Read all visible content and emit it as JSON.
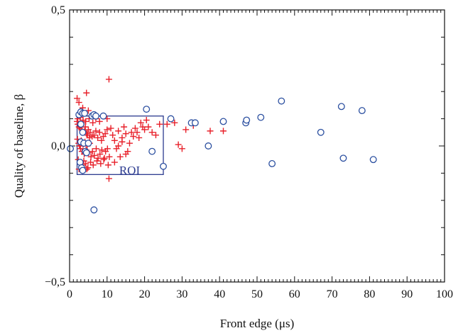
{
  "chart_data": {
    "type": "scatter",
    "title": "",
    "xlabel": "Front edge (μs)",
    "ylabel": "Quality of baseline, β",
    "xlim": [
      0,
      100
    ],
    "ylim": [
      -0.5,
      0.5
    ],
    "x_ticks": [
      0,
      10,
      20,
      30,
      40,
      50,
      60,
      70,
      80,
      90,
      100
    ],
    "x_tick_labels": [
      "0",
      "10",
      "20",
      "30",
      "40",
      "50",
      "60",
      "70",
      "80",
      "90",
      "100"
    ],
    "y_ticks": [
      -0.5,
      0.0,
      0.5
    ],
    "y_tick_labels": [
      "−0,5",
      "0,0",
      "0,5"
    ],
    "grid": false,
    "legend": "none",
    "annotations": [
      {
        "text": "ROI",
        "x": 16,
        "y": -0.11
      }
    ],
    "roi": {
      "x0": 2,
      "x1": 25,
      "y0": -0.105,
      "y1": 0.11
    },
    "series": [
      {
        "marker": "plus",
        "color": "#e8202a",
        "points": [
          [
            2.0,
            0.175
          ],
          [
            2.5,
            0.16
          ],
          [
            3.0,
            0.12
          ],
          [
            3.5,
            0.14
          ],
          [
            4.5,
            0.195
          ],
          [
            5.0,
            0.13
          ],
          [
            10.5,
            0.245
          ],
          [
            10.0,
            0.1
          ],
          [
            2.0,
            0.09
          ],
          [
            2.2,
            0.08
          ],
          [
            2.5,
            0.07
          ],
          [
            2.7,
            0.065
          ],
          [
            3.0,
            0.075
          ],
          [
            3.2,
            0.06
          ],
          [
            3.5,
            0.085
          ],
          [
            3.7,
            0.05
          ],
          [
            4.0,
            0.055
          ],
          [
            4.2,
            0.07
          ],
          [
            4.5,
            0.045
          ],
          [
            4.8,
            0.04
          ],
          [
            5.0,
            0.06
          ],
          [
            5.3,
            0.03
          ],
          [
            5.5,
            0.05
          ],
          [
            6.0,
            0.035
          ],
          [
            6.5,
            0.04
          ],
          [
            7.0,
            0.055
          ],
          [
            7.5,
            0.03
          ],
          [
            8.0,
            0.05
          ],
          [
            8.5,
            0.02
          ],
          [
            9.0,
            0.035
          ],
          [
            9.5,
            0.045
          ],
          [
            10.0,
            0.06
          ],
          [
            2.1,
            0.025
          ],
          [
            2.4,
            0.01
          ],
          [
            2.6,
            0.0
          ],
          [
            2.9,
            -0.01
          ],
          [
            3.1,
            0.02
          ],
          [
            3.3,
            -0.02
          ],
          [
            3.6,
            0.005
          ],
          [
            3.9,
            -0.03
          ],
          [
            4.1,
            0.015
          ],
          [
            4.4,
            -0.015
          ],
          [
            4.7,
            0.0
          ],
          [
            5.1,
            -0.025
          ],
          [
            5.4,
            0.01
          ],
          [
            5.7,
            -0.04
          ],
          [
            6.1,
            -0.02
          ],
          [
            6.6,
            -0.035
          ],
          [
            7.1,
            -0.01
          ],
          [
            7.6,
            -0.045
          ],
          [
            8.1,
            -0.03
          ],
          [
            8.6,
            -0.015
          ],
          [
            9.1,
            -0.05
          ],
          [
            9.6,
            -0.02
          ],
          [
            10.1,
            -0.01
          ],
          [
            10.6,
            -0.04
          ],
          [
            2.3,
            -0.05
          ],
          [
            2.8,
            -0.06
          ],
          [
            3.4,
            -0.07
          ],
          [
            3.8,
            -0.055
          ],
          [
            4.3,
            -0.065
          ],
          [
            4.9,
            -0.08
          ],
          [
            5.6,
            -0.06
          ],
          [
            6.3,
            -0.07
          ],
          [
            7.3,
            -0.055
          ],
          [
            8.3,
            -0.065
          ],
          [
            9.3,
            -0.045
          ],
          [
            10.3,
            -0.07
          ],
          [
            2.5,
            -0.085
          ],
          [
            3.5,
            -0.09
          ],
          [
            4.6,
            -0.085
          ],
          [
            10.5,
            -0.12
          ],
          [
            2.2,
            0.1
          ],
          [
            2.8,
            0.105
          ],
          [
            3.6,
            0.095
          ],
          [
            4.3,
            0.09
          ],
          [
            5.2,
            0.1
          ],
          [
            6.2,
            0.085
          ],
          [
            7.0,
            0.1
          ],
          [
            8.0,
            0.09
          ],
          [
            11.0,
            0.065
          ],
          [
            11.5,
            0.04
          ],
          [
            12.0,
            0.02
          ],
          [
            12.5,
            -0.01
          ],
          [
            13.0,
            0.055
          ],
          [
            13.5,
            -0.04
          ],
          [
            14.0,
            0.03
          ],
          [
            14.5,
            0.07
          ],
          [
            15.0,
            0.045
          ],
          [
            15.5,
            -0.02
          ],
          [
            16.0,
            0.01
          ],
          [
            16.5,
            0.05
          ],
          [
            17.0,
            0.035
          ],
          [
            17.5,
            0.065
          ],
          [
            18.0,
            0.05
          ],
          [
            18.5,
            0.03
          ],
          [
            19.0,
            0.085
          ],
          [
            19.5,
            0.07
          ],
          [
            20.0,
            0.06
          ],
          [
            20.5,
            0.095
          ],
          [
            21.0,
            0.07
          ],
          [
            22.0,
            0.05
          ],
          [
            23.0,
            0.04
          ],
          [
            24.0,
            0.08
          ],
          [
            13.0,
            0.0
          ],
          [
            15.0,
            -0.03
          ],
          [
            12.0,
            -0.06
          ],
          [
            14.0,
            0.015
          ],
          [
            26.0,
            0.08
          ],
          [
            28.0,
            0.085
          ],
          [
            29.0,
            0.005
          ],
          [
            30.0,
            -0.01
          ],
          [
            31.0,
            0.06
          ],
          [
            33.0,
            0.075
          ],
          [
            37.5,
            0.055
          ],
          [
            41.0,
            0.055
          ]
        ]
      },
      {
        "marker": "circle",
        "color": "#2b4fa0",
        "points": [
          [
            0.2,
            -0.01
          ],
          [
            2.5,
            0.115
          ],
          [
            3.0,
            0.125
          ],
          [
            3.5,
            0.12
          ],
          [
            4.0,
            0.12
          ],
          [
            6.0,
            0.11
          ],
          [
            6.5,
            0.115
          ],
          [
            7.0,
            0.11
          ],
          [
            9.0,
            0.11
          ],
          [
            3.0,
            0.08
          ],
          [
            3.5,
            0.05
          ],
          [
            3.0,
            0.015
          ],
          [
            3.8,
            0.01
          ],
          [
            4.2,
            -0.02
          ],
          [
            5.0,
            0.01
          ],
          [
            4.5,
            -0.025
          ],
          [
            2.8,
            -0.06
          ],
          [
            3.2,
            -0.08
          ],
          [
            3.5,
            -0.09
          ],
          [
            20.5,
            0.135
          ],
          [
            22.0,
            -0.02
          ],
          [
            25.0,
            -0.075
          ],
          [
            6.5,
            -0.235
          ],
          [
            27.0,
            0.1
          ],
          [
            32.5,
            0.085
          ],
          [
            33.5,
            0.085
          ],
          [
            37.0,
            0.0
          ],
          [
            41.0,
            0.09
          ],
          [
            47.0,
            0.085
          ],
          [
            47.2,
            0.095
          ],
          [
            51.0,
            0.105
          ],
          [
            56.5,
            0.165
          ],
          [
            54.0,
            -0.065
          ],
          [
            67.0,
            0.05
          ],
          [
            72.5,
            0.145
          ],
          [
            73.0,
            -0.045
          ],
          [
            78.0,
            0.13
          ],
          [
            81.0,
            -0.05
          ]
        ]
      }
    ]
  }
}
